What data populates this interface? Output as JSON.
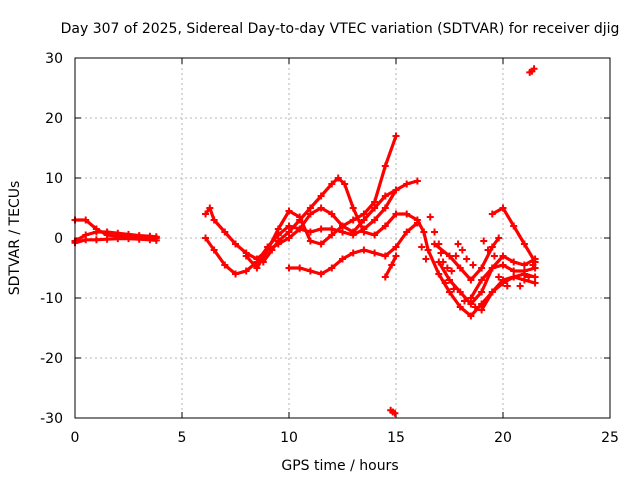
{
  "chart_data": {
    "type": "scatter",
    "title": "Day 307 of 2025, Sidereal Day-to-day VTEC variation (SDTVAR) for receiver djig",
    "xlabel": "GPS time / hours",
    "ylabel": "SDTVAR / TECUs",
    "xlim": [
      0,
      25
    ],
    "ylim": [
      -30,
      30
    ],
    "xticks": [
      0,
      5,
      10,
      15,
      20,
      25
    ],
    "yticks": [
      -30,
      -20,
      -10,
      0,
      10,
      20,
      30
    ],
    "xtick_labels": [
      "0",
      "5",
      "10",
      "15",
      "20",
      "25"
    ],
    "ytick_labels": [
      "-30",
      "-20",
      "-10",
      "0",
      "10",
      "20",
      "30"
    ],
    "grid": true,
    "marker": "+",
    "color": "#ff0000",
    "traces": [
      [
        [
          0.0,
          3.0
        ],
        [
          0.5,
          3.0
        ],
        [
          1.0,
          1.5
        ],
        [
          1.5,
          0.5
        ],
        [
          2.0,
          0.3
        ],
        [
          2.5,
          0.2
        ],
        [
          3.0,
          0.2
        ],
        [
          3.5,
          0.0
        ],
        [
          3.8,
          0.0
        ]
      ],
      [
        [
          0.0,
          -0.5
        ],
        [
          0.5,
          0.5
        ],
        [
          1.0,
          1.0
        ],
        [
          1.5,
          1.0
        ],
        [
          2.0,
          0.8
        ],
        [
          2.5,
          0.6
        ],
        [
          3.0,
          0.4
        ],
        [
          3.5,
          0.3
        ],
        [
          3.8,
          0.2
        ]
      ],
      [
        [
          0.0,
          -0.8
        ],
        [
          0.5,
          -0.3
        ],
        [
          1.0,
          -0.3
        ],
        [
          1.5,
          -0.2
        ],
        [
          2.0,
          -0.1
        ],
        [
          2.5,
          -0.1
        ],
        [
          3.0,
          -0.2
        ],
        [
          3.5,
          -0.3
        ],
        [
          3.8,
          -0.4
        ]
      ],
      [
        [
          6.1,
          4.0
        ],
        [
          6.3,
          5.0
        ],
        [
          6.5,
          3.0
        ],
        [
          7.0,
          1.0
        ],
        [
          7.5,
          -1.0
        ],
        [
          8.0,
          -2.5
        ],
        [
          8.5,
          -3.5
        ],
        [
          9.0,
          -2.0
        ],
        [
          9.5,
          1.5
        ],
        [
          10.0,
          4.5
        ],
        [
          10.5,
          3.5
        ],
        [
          11.0,
          -0.5
        ],
        [
          11.5,
          -1.0
        ],
        [
          12.0,
          0.5
        ],
        [
          12.5,
          2.0
        ],
        [
          13.0,
          3.0
        ],
        [
          13.5,
          4.0
        ],
        [
          14.0,
          6.0
        ],
        [
          14.5,
          12.0
        ],
        [
          15.0,
          17.0
        ]
      ],
      [
        [
          6.1,
          0.0
        ],
        [
          6.5,
          -2.0
        ],
        [
          7.0,
          -4.5
        ],
        [
          7.5,
          -6.0
        ],
        [
          8.0,
          -5.5
        ],
        [
          8.5,
          -4.0
        ],
        [
          9.0,
          -1.5
        ],
        [
          9.5,
          0.5
        ],
        [
          10.0,
          2.0
        ],
        [
          10.5,
          1.5
        ],
        [
          11.0,
          1.0
        ],
        [
          11.5,
          1.5
        ],
        [
          12.0,
          1.5
        ],
        [
          12.5,
          1.0
        ],
        [
          13.0,
          0.5
        ],
        [
          13.5,
          1.5
        ],
        [
          14.0,
          3.0
        ],
        [
          14.5,
          5.0
        ],
        [
          15.0,
          8.0
        ],
        [
          15.5,
          9.0
        ],
        [
          16.0,
          9.5
        ]
      ],
      [
        [
          8.0,
          -3.0
        ],
        [
          8.5,
          -5.0
        ],
        [
          9.0,
          -2.0
        ],
        [
          9.5,
          -1.0
        ],
        [
          10.0,
          0.0
        ],
        [
          10.5,
          1.5
        ],
        [
          11.0,
          4.0
        ],
        [
          11.5,
          5.0
        ],
        [
          12.0,
          4.0
        ],
        [
          12.5,
          2.0
        ],
        [
          13.0,
          1.0
        ],
        [
          13.5,
          3.0
        ],
        [
          14.0,
          5.0
        ],
        [
          14.5,
          7.0
        ],
        [
          15.0,
          8.0
        ]
      ],
      [
        [
          8.8,
          -4.0
        ],
        [
          9.2,
          -2.0
        ],
        [
          9.5,
          -0.5
        ],
        [
          10.0,
          1.0
        ],
        [
          10.5,
          3.0
        ],
        [
          11.0,
          5.0
        ],
        [
          11.5,
          7.0
        ],
        [
          12.0,
          9.0
        ],
        [
          12.3,
          10.0
        ],
        [
          12.6,
          9.0
        ],
        [
          13.0,
          5.0
        ],
        [
          13.5,
          1.0
        ],
        [
          14.0,
          0.5
        ],
        [
          14.5,
          2.0
        ],
        [
          15.0,
          4.0
        ]
      ],
      [
        [
          10.0,
          -5.0
        ],
        [
          10.5,
          -5.0
        ],
        [
          11.0,
          -5.5
        ],
        [
          11.5,
          -6.0
        ],
        [
          12.0,
          -5.0
        ],
        [
          12.5,
          -3.5
        ],
        [
          13.0,
          -2.5
        ],
        [
          13.5,
          -2.0
        ],
        [
          14.0,
          -2.5
        ],
        [
          14.5,
          -3.0
        ],
        [
          15.0,
          -1.5
        ],
        [
          15.5,
          1.0
        ],
        [
          16.0,
          2.5
        ]
      ],
      [
        [
          14.5,
          -6.5
        ],
        [
          14.8,
          -4.5
        ],
        [
          15.0,
          -3.0
        ]
      ],
      [
        [
          15.0,
          4.0
        ],
        [
          15.5,
          4.0
        ],
        [
          16.0,
          3.0
        ],
        [
          16.3,
          1.0
        ],
        [
          16.5,
          -2.0
        ],
        [
          17.0,
          -6.0
        ],
        [
          17.5,
          -9.0
        ],
        [
          18.0,
          -11.5
        ],
        [
          18.5,
          -13.0
        ],
        [
          19.0,
          -11.0
        ],
        [
          19.5,
          -9.0
        ],
        [
          20.0,
          -7.5
        ],
        [
          20.5,
          -6.5
        ],
        [
          21.0,
          -6.0
        ],
        [
          21.5,
          -6.5
        ]
      ],
      [
        [
          17.0,
          -4.0
        ],
        [
          17.5,
          -7.0
        ],
        [
          18.0,
          -9.0
        ],
        [
          18.5,
          -11.0
        ],
        [
          19.0,
          -9.0
        ],
        [
          19.5,
          -5.0
        ],
        [
          20.0,
          -3.0
        ],
        [
          20.5,
          -4.0
        ],
        [
          21.0,
          -4.5
        ],
        [
          21.5,
          -3.5
        ]
      ],
      [
        [
          16.8,
          -1.0
        ],
        [
          17.5,
          -3.0
        ],
        [
          18.0,
          -5.0
        ],
        [
          18.5,
          -7.0
        ],
        [
          19.0,
          -5.0
        ],
        [
          19.5,
          -1.5
        ],
        [
          19.8,
          0.0
        ]
      ],
      [
        [
          18.5,
          -10.0
        ],
        [
          19.0,
          -7.0
        ],
        [
          19.5,
          -5.0
        ],
        [
          20.0,
          -4.5
        ],
        [
          20.5,
          -5.5
        ],
        [
          21.0,
          -5.5
        ],
        [
          21.5,
          -5.0
        ]
      ],
      [
        [
          19.5,
          4.0
        ],
        [
          20.0,
          5.0
        ],
        [
          20.5,
          2.0
        ],
        [
          21.0,
          -1.0
        ],
        [
          21.5,
          -4.0
        ]
      ],
      [
        [
          19.0,
          -12.0
        ],
        [
          19.5,
          -9.0
        ],
        [
          20.0,
          -7.0
        ],
        [
          20.5,
          -6.5
        ],
        [
          21.0,
          -7.0
        ],
        [
          21.5,
          -7.5
        ]
      ]
    ],
    "points": [
      [
        21.35,
        27.8
      ],
      [
        21.45,
        28.2
      ],
      [
        21.25,
        27.6
      ],
      [
        14.75,
        -28.7
      ],
      [
        14.85,
        -29.0
      ],
      [
        14.95,
        -29.2
      ],
      [
        16.6,
        3.5
      ],
      [
        16.8,
        1.0
      ],
      [
        17.0,
        -1.0
      ],
      [
        17.1,
        -2.5
      ],
      [
        17.2,
        -4.0
      ],
      [
        17.4,
        -5.0
      ],
      [
        17.6,
        -5.5
      ],
      [
        17.8,
        -3.0
      ],
      [
        17.9,
        -1.0
      ],
      [
        18.1,
        -2.0
      ],
      [
        18.3,
        -3.5
      ],
      [
        18.6,
        -4.5
      ],
      [
        19.1,
        -0.5
      ],
      [
        19.3,
        -2.0
      ],
      [
        19.6,
        -3.0
      ],
      [
        19.8,
        -6.5
      ],
      [
        18.2,
        -10.5
      ],
      [
        18.7,
        -11.5
      ],
      [
        17.3,
        -7.5
      ],
      [
        17.7,
        -8.5
      ],
      [
        16.4,
        -3.5
      ],
      [
        16.2,
        -1.5
      ],
      [
        20.2,
        -8.0
      ],
      [
        20.8,
        -8.0
      ],
      [
        21.2,
        -6.5
      ],
      [
        21.4,
        -4.5
      ]
    ]
  }
}
